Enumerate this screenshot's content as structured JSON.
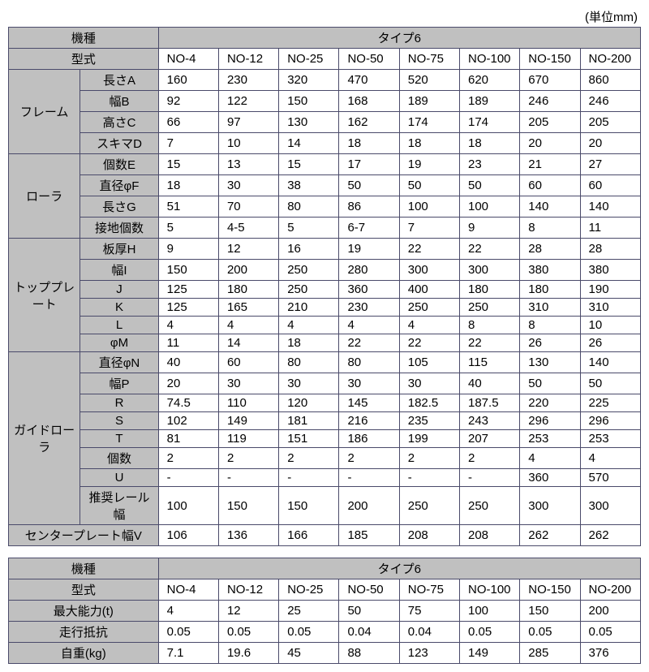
{
  "unit_label": "(単位mm)",
  "table1": {
    "header_kishu": "機種",
    "header_type": "タイプ6",
    "header_keishiki": "型式",
    "models": [
      "NO-4",
      "NO-12",
      "NO-25",
      "NO-50",
      "NO-75",
      "NO-100",
      "NO-150",
      "NO-200"
    ],
    "groups": [
      {
        "label": "フレーム",
        "rows": [
          {
            "label": "長さA",
            "v": [
              "160",
              "230",
              "320",
              "470",
              "520",
              "620",
              "670",
              "860"
            ]
          },
          {
            "label": "幅B",
            "v": [
              "92",
              "122",
              "150",
              "168",
              "189",
              "189",
              "246",
              "246"
            ]
          },
          {
            "label": "高さC",
            "v": [
              "66",
              "97",
              "130",
              "162",
              "174",
              "174",
              "205",
              "205"
            ]
          },
          {
            "label": "スキマD",
            "v": [
              "7",
              "10",
              "14",
              "18",
              "18",
              "18",
              "20",
              "20"
            ]
          }
        ]
      },
      {
        "label": "ローラ",
        "rows": [
          {
            "label": "個数E",
            "v": [
              "15",
              "13",
              "15",
              "17",
              "19",
              "23",
              "21",
              "27"
            ]
          },
          {
            "label": "直径φF",
            "v": [
              "18",
              "30",
              "38",
              "50",
              "50",
              "50",
              "60",
              "60"
            ]
          },
          {
            "label": "長さG",
            "v": [
              "51",
              "70",
              "80",
              "86",
              "100",
              "100",
              "140",
              "140"
            ]
          },
          {
            "label": "接地個数",
            "v": [
              "5",
              "4-5",
              "5",
              "6-7",
              "7",
              "9",
              "8",
              "11"
            ]
          }
        ]
      },
      {
        "label": "トッププレート",
        "rows": [
          {
            "label": "板厚H",
            "v": [
              "9",
              "12",
              "16",
              "19",
              "22",
              "22",
              "28",
              "28"
            ]
          },
          {
            "label": "幅I",
            "v": [
              "150",
              "200",
              "250",
              "280",
              "300",
              "300",
              "380",
              "380"
            ]
          },
          {
            "label": "J",
            "v": [
              "125",
              "180",
              "250",
              "360",
              "400",
              "180",
              "180",
              "190"
            ]
          },
          {
            "label": "K",
            "v": [
              "125",
              "165",
              "210",
              "230",
              "250",
              "250",
              "310",
              "310"
            ]
          },
          {
            "label": "L",
            "v": [
              "4",
              "4",
              "4",
              "4",
              "4",
              "8",
              "8",
              "10"
            ]
          },
          {
            "label": "φM",
            "v": [
              "11",
              "14",
              "18",
              "22",
              "22",
              "22",
              "26",
              "26"
            ]
          }
        ]
      },
      {
        "label": "ガイドローラ",
        "rows": [
          {
            "label": "直径φN",
            "v": [
              "40",
              "60",
              "80",
              "80",
              "105",
              "115",
              "130",
              "140"
            ]
          },
          {
            "label": "幅P",
            "v": [
              "20",
              "30",
              "30",
              "30",
              "30",
              "40",
              "50",
              "50"
            ]
          },
          {
            "label": "R",
            "v": [
              "74.5",
              "110",
              "120",
              "145",
              "182.5",
              "187.5",
              "220",
              "225"
            ]
          },
          {
            "label": "S",
            "v": [
              "102",
              "149",
              "181",
              "216",
              "235",
              "243",
              "296",
              "296"
            ]
          },
          {
            "label": "T",
            "v": [
              "81",
              "119",
              "151",
              "186",
              "199",
              "207",
              "253",
              "253"
            ]
          },
          {
            "label": "個数",
            "v": [
              "2",
              "2",
              "2",
              "2",
              "2",
              "2",
              "4",
              "4"
            ]
          },
          {
            "label": "U",
            "v": [
              "-",
              "-",
              "-",
              "-",
              "-",
              "-",
              "360",
              "570"
            ]
          },
          {
            "label": "推奨レール幅",
            "v": [
              "100",
              "150",
              "150",
              "200",
              "250",
              "250",
              "300",
              "300"
            ]
          }
        ]
      }
    ],
    "center_plate": {
      "label": "センタープレート幅V",
      "v": [
        "106",
        "136",
        "166",
        "185",
        "208",
        "208",
        "262",
        "262"
      ]
    }
  },
  "table2": {
    "header_kishu": "機種",
    "header_type": "タイプ6",
    "header_keishiki": "型式",
    "models": [
      "NO-4",
      "NO-12",
      "NO-25",
      "NO-50",
      "NO-75",
      "NO-100",
      "NO-150",
      "NO-200"
    ],
    "rows": [
      {
        "label": "最大能力(t)",
        "v": [
          "4",
          "12",
          "25",
          "50",
          "75",
          "100",
          "150",
          "200"
        ]
      },
      {
        "label": "走行抵抗",
        "v": [
          "0.05",
          "0.05",
          "0.05",
          "0.04",
          "0.04",
          "0.05",
          "0.05",
          "0.05"
        ]
      },
      {
        "label": "自重(kg)",
        "v": [
          "7.1",
          "19.6",
          "45",
          "88",
          "123",
          "149",
          "285",
          "376"
        ]
      }
    ]
  }
}
